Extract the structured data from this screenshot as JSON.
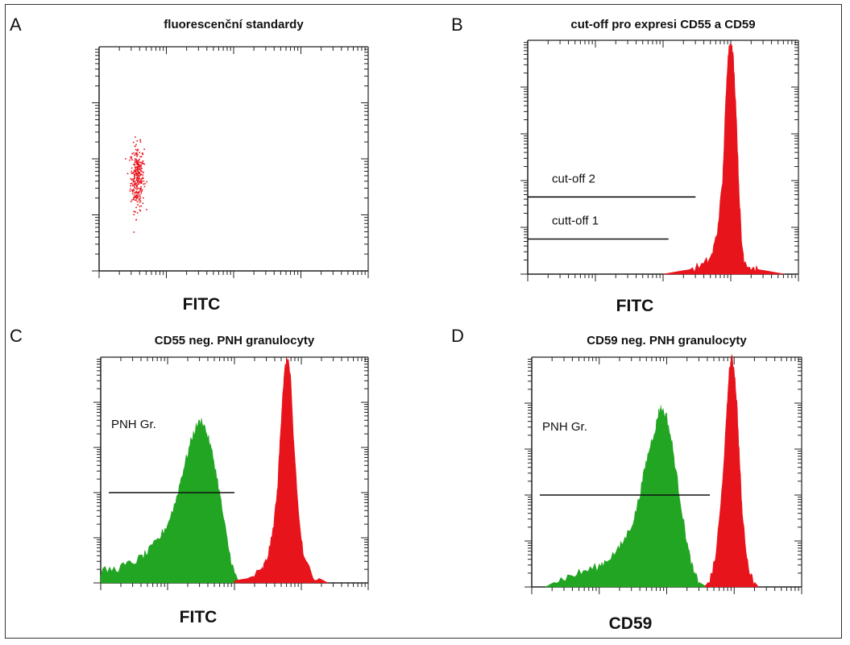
{
  "colors": {
    "red": "#e8141c",
    "green": "#22a523",
    "axis": "#222222",
    "text": "#111111"
  },
  "chart_data": [
    {
      "panel": "A",
      "type": "scatter",
      "title": "fluorescenční standardy",
      "xlabel": "FITC",
      "ylabel": "",
      "xlim": [
        0,
        100
      ],
      "ylim": [
        0,
        100
      ],
      "color": "#e8141c",
      "cluster": {
        "x_center": 14,
        "x_spread": 2.5,
        "y_center": 42,
        "y_spread": 8,
        "count": 300
      }
    },
    {
      "panel": "B",
      "type": "area",
      "title": "cut-off pro expresi CD55 a CD59",
      "xlabel": "FITC",
      "ylabel": "",
      "xlim": [
        0,
        100
      ],
      "ylim": [
        0,
        100
      ],
      "series": [
        {
          "color": "#e8141c",
          "x": [
            50,
            55,
            60,
            65,
            68,
            70,
            72,
            73,
            74,
            75,
            76,
            77,
            78,
            79,
            80,
            82,
            85,
            90,
            95
          ],
          "y": [
            0,
            1,
            2,
            4,
            8,
            18,
            40,
            70,
            95,
            100,
            92,
            70,
            38,
            14,
            6,
            3,
            2,
            1,
            0
          ]
        }
      ],
      "annotations": [
        {
          "text": "cut-off 2",
          "level": 33,
          "line_x": [
            0,
            62
          ]
        },
        {
          "text": "cutt-off 1",
          "level": 15,
          "line_x": [
            0,
            52
          ]
        }
      ]
    },
    {
      "panel": "C",
      "type": "area",
      "title": "CD55 neg. PNH granulocyty",
      "xlabel": "FITC",
      "ylabel": "",
      "xlim": [
        0,
        100
      ],
      "ylim": [
        0,
        100
      ],
      "series": [
        {
          "color": "#22a523",
          "x": [
            0,
            5,
            10,
            15,
            18,
            22,
            25,
            28,
            30,
            32,
            34,
            36,
            38,
            40,
            42,
            44,
            46,
            48,
            50,
            52
          ],
          "y": [
            5,
            6,
            8,
            11,
            14,
            20,
            26,
            36,
            46,
            55,
            64,
            70,
            72,
            65,
            56,
            43,
            28,
            14,
            4,
            0
          ]
        },
        {
          "color": "#e8141c",
          "x": [
            50,
            55,
            60,
            62,
            64,
            66,
            67,
            68,
            69,
            70,
            71,
            72,
            74,
            76,
            80,
            85
          ],
          "y": [
            1,
            2,
            5,
            10,
            20,
            40,
            62,
            84,
            96,
            100,
            90,
            66,
            30,
            10,
            3,
            0
          ]
        }
      ],
      "annotations": [
        {
          "text": "PNH Gr.",
          "level": 40,
          "line_x": [
            3,
            50
          ]
        }
      ]
    },
    {
      "panel": "D",
      "type": "area",
      "title": "CD59 neg. PNH granulocyty",
      "xlabel": "CD59",
      "ylabel": "",
      "xlim": [
        0,
        100
      ],
      "ylim": [
        0,
        100
      ],
      "series": [
        {
          "color": "#22a523",
          "x": [
            5,
            10,
            15,
            20,
            25,
            28,
            32,
            35,
            38,
            40,
            42,
            44,
            46,
            47,
            48,
            50,
            52,
            54,
            56,
            58,
            60,
            62,
            65
          ],
          "y": [
            0,
            3,
            5,
            7,
            9,
            12,
            16,
            22,
            30,
            40,
            52,
            62,
            70,
            76,
            78,
            74,
            62,
            46,
            30,
            16,
            6,
            2,
            0
          ]
        },
        {
          "color": "#e8141c",
          "x": [
            64,
            66,
            68,
            70,
            72,
            73,
            74,
            75,
            76,
            77,
            78,
            80,
            82,
            84
          ],
          "y": [
            0,
            3,
            12,
            35,
            70,
            92,
            100,
            95,
            80,
            55,
            32,
            10,
            3,
            0
          ]
        }
      ],
      "annotations": [
        {
          "text": "PNH Gr.",
          "level": 40,
          "line_x": [
            3,
            66
          ]
        }
      ]
    }
  ]
}
